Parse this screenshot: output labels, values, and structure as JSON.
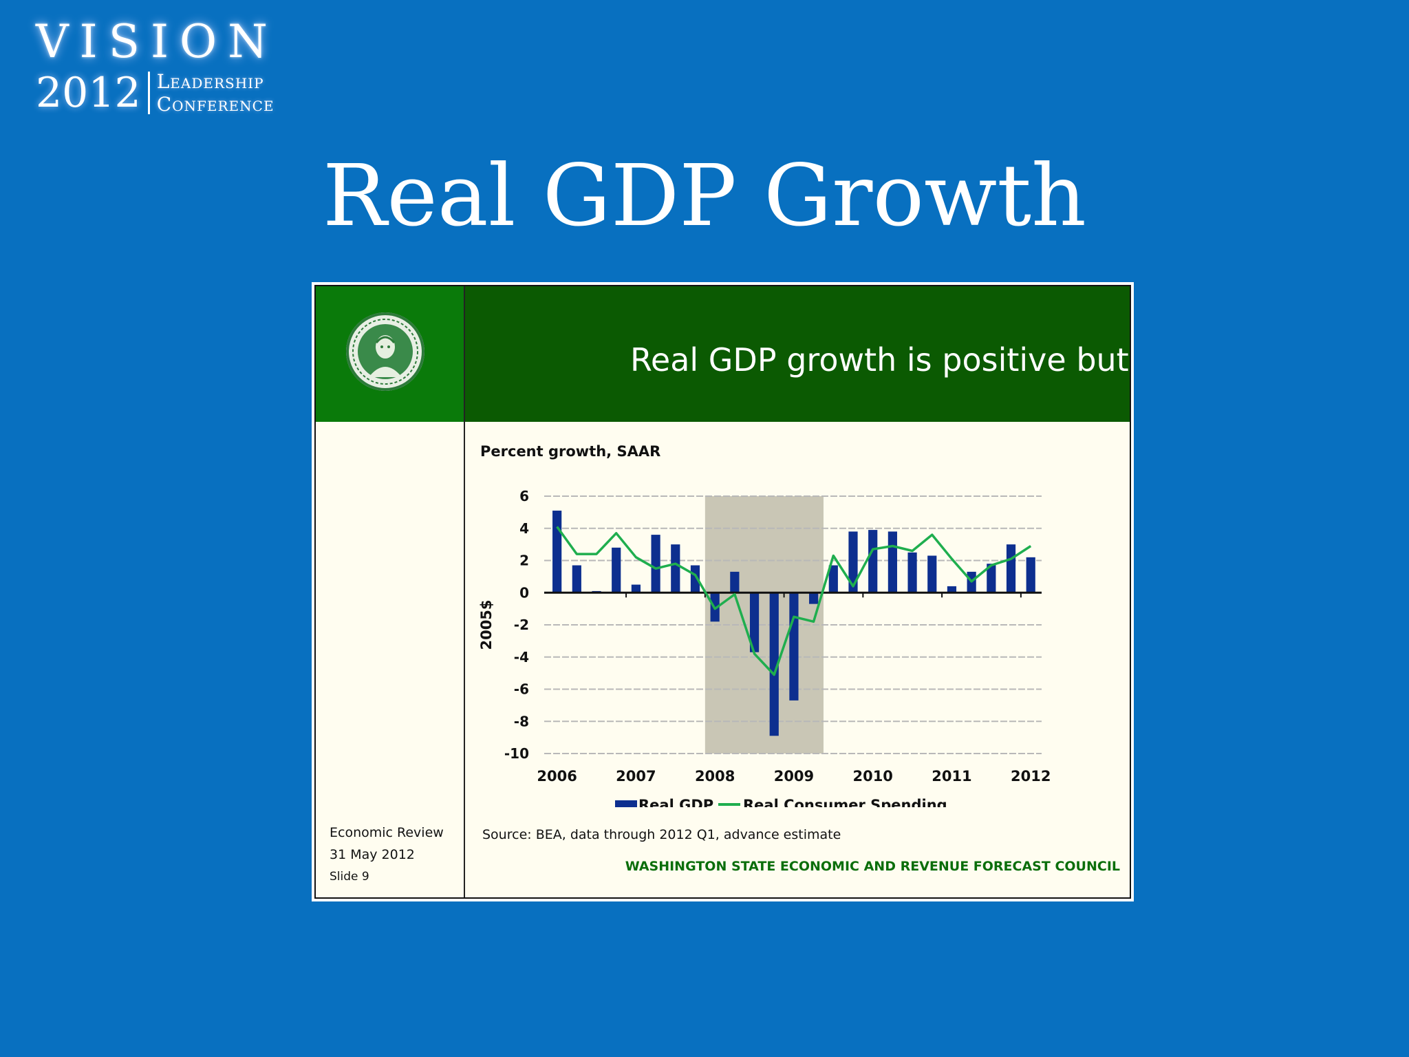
{
  "logo": {
    "word": "VISION",
    "year": "2012",
    "line1": "Leadership",
    "line2": "Conference"
  },
  "slide_title": "Real GDP Growth",
  "embedded_slide": {
    "banner_title": "Real GDP growth is positive but slow",
    "footer": {
      "line1": "Economic Review",
      "line2": "31 May 2012",
      "line3": "Slide 9"
    },
    "source": "Source: BEA, data through 2012 Q1, advance estimate",
    "council": "WASHINGTON STATE ECONOMIC AND REVENUE FORECAST COUNCIL"
  },
  "colors": {
    "background": "#0870c0",
    "bar": "#0d2f8f",
    "line": "#1fae4e",
    "recession": "#c9c6b5",
    "banner": "#0b5a02"
  },
  "chart_data": {
    "type": "bar",
    "title": "Percent growth, SAAR",
    "xlabel": "",
    "ylabel": "2005$",
    "ylim": [
      -10,
      6
    ],
    "yticks": [
      6,
      4,
      2,
      0,
      -2,
      -4,
      -6,
      -8,
      -10
    ],
    "year_labels": [
      "2006",
      "2007",
      "2008",
      "2009",
      "2010",
      "2011",
      "2012"
    ],
    "categories": [
      "2006Q1",
      "2006Q2",
      "2006Q3",
      "2006Q4",
      "2007Q1",
      "2007Q2",
      "2007Q3",
      "2007Q4",
      "2008Q1",
      "2008Q2",
      "2008Q3",
      "2008Q4",
      "2009Q1",
      "2009Q2",
      "2009Q3",
      "2009Q4",
      "2010Q1",
      "2010Q2",
      "2010Q3",
      "2010Q4",
      "2011Q1",
      "2011Q2",
      "2011Q3",
      "2011Q4",
      "2012Q1"
    ],
    "recession": [
      "2008Q1",
      "2009Q2"
    ],
    "grid": true,
    "legend_position": "bottom",
    "series": [
      {
        "name": "Real GDP",
        "type": "bar",
        "values": [
          5.1,
          1.7,
          0.1,
          2.8,
          0.5,
          3.6,
          3.0,
          1.7,
          -1.8,
          1.3,
          -3.7,
          -8.9,
          -6.7,
          -0.7,
          1.7,
          3.8,
          3.9,
          3.8,
          2.5,
          2.3,
          0.4,
          1.3,
          1.8,
          3.0,
          2.2
        ]
      },
      {
        "name": "Real Consumer Spending",
        "type": "line",
        "values": [
          4.1,
          2.4,
          2.4,
          3.7,
          2.2,
          1.5,
          1.8,
          1.1,
          -1.0,
          -0.1,
          -3.8,
          -5.1,
          -1.5,
          -1.8,
          2.3,
          0.4,
          2.7,
          2.9,
          2.6,
          3.6,
          2.1,
          0.7,
          1.7,
          2.1,
          2.9
        ]
      }
    ]
  }
}
